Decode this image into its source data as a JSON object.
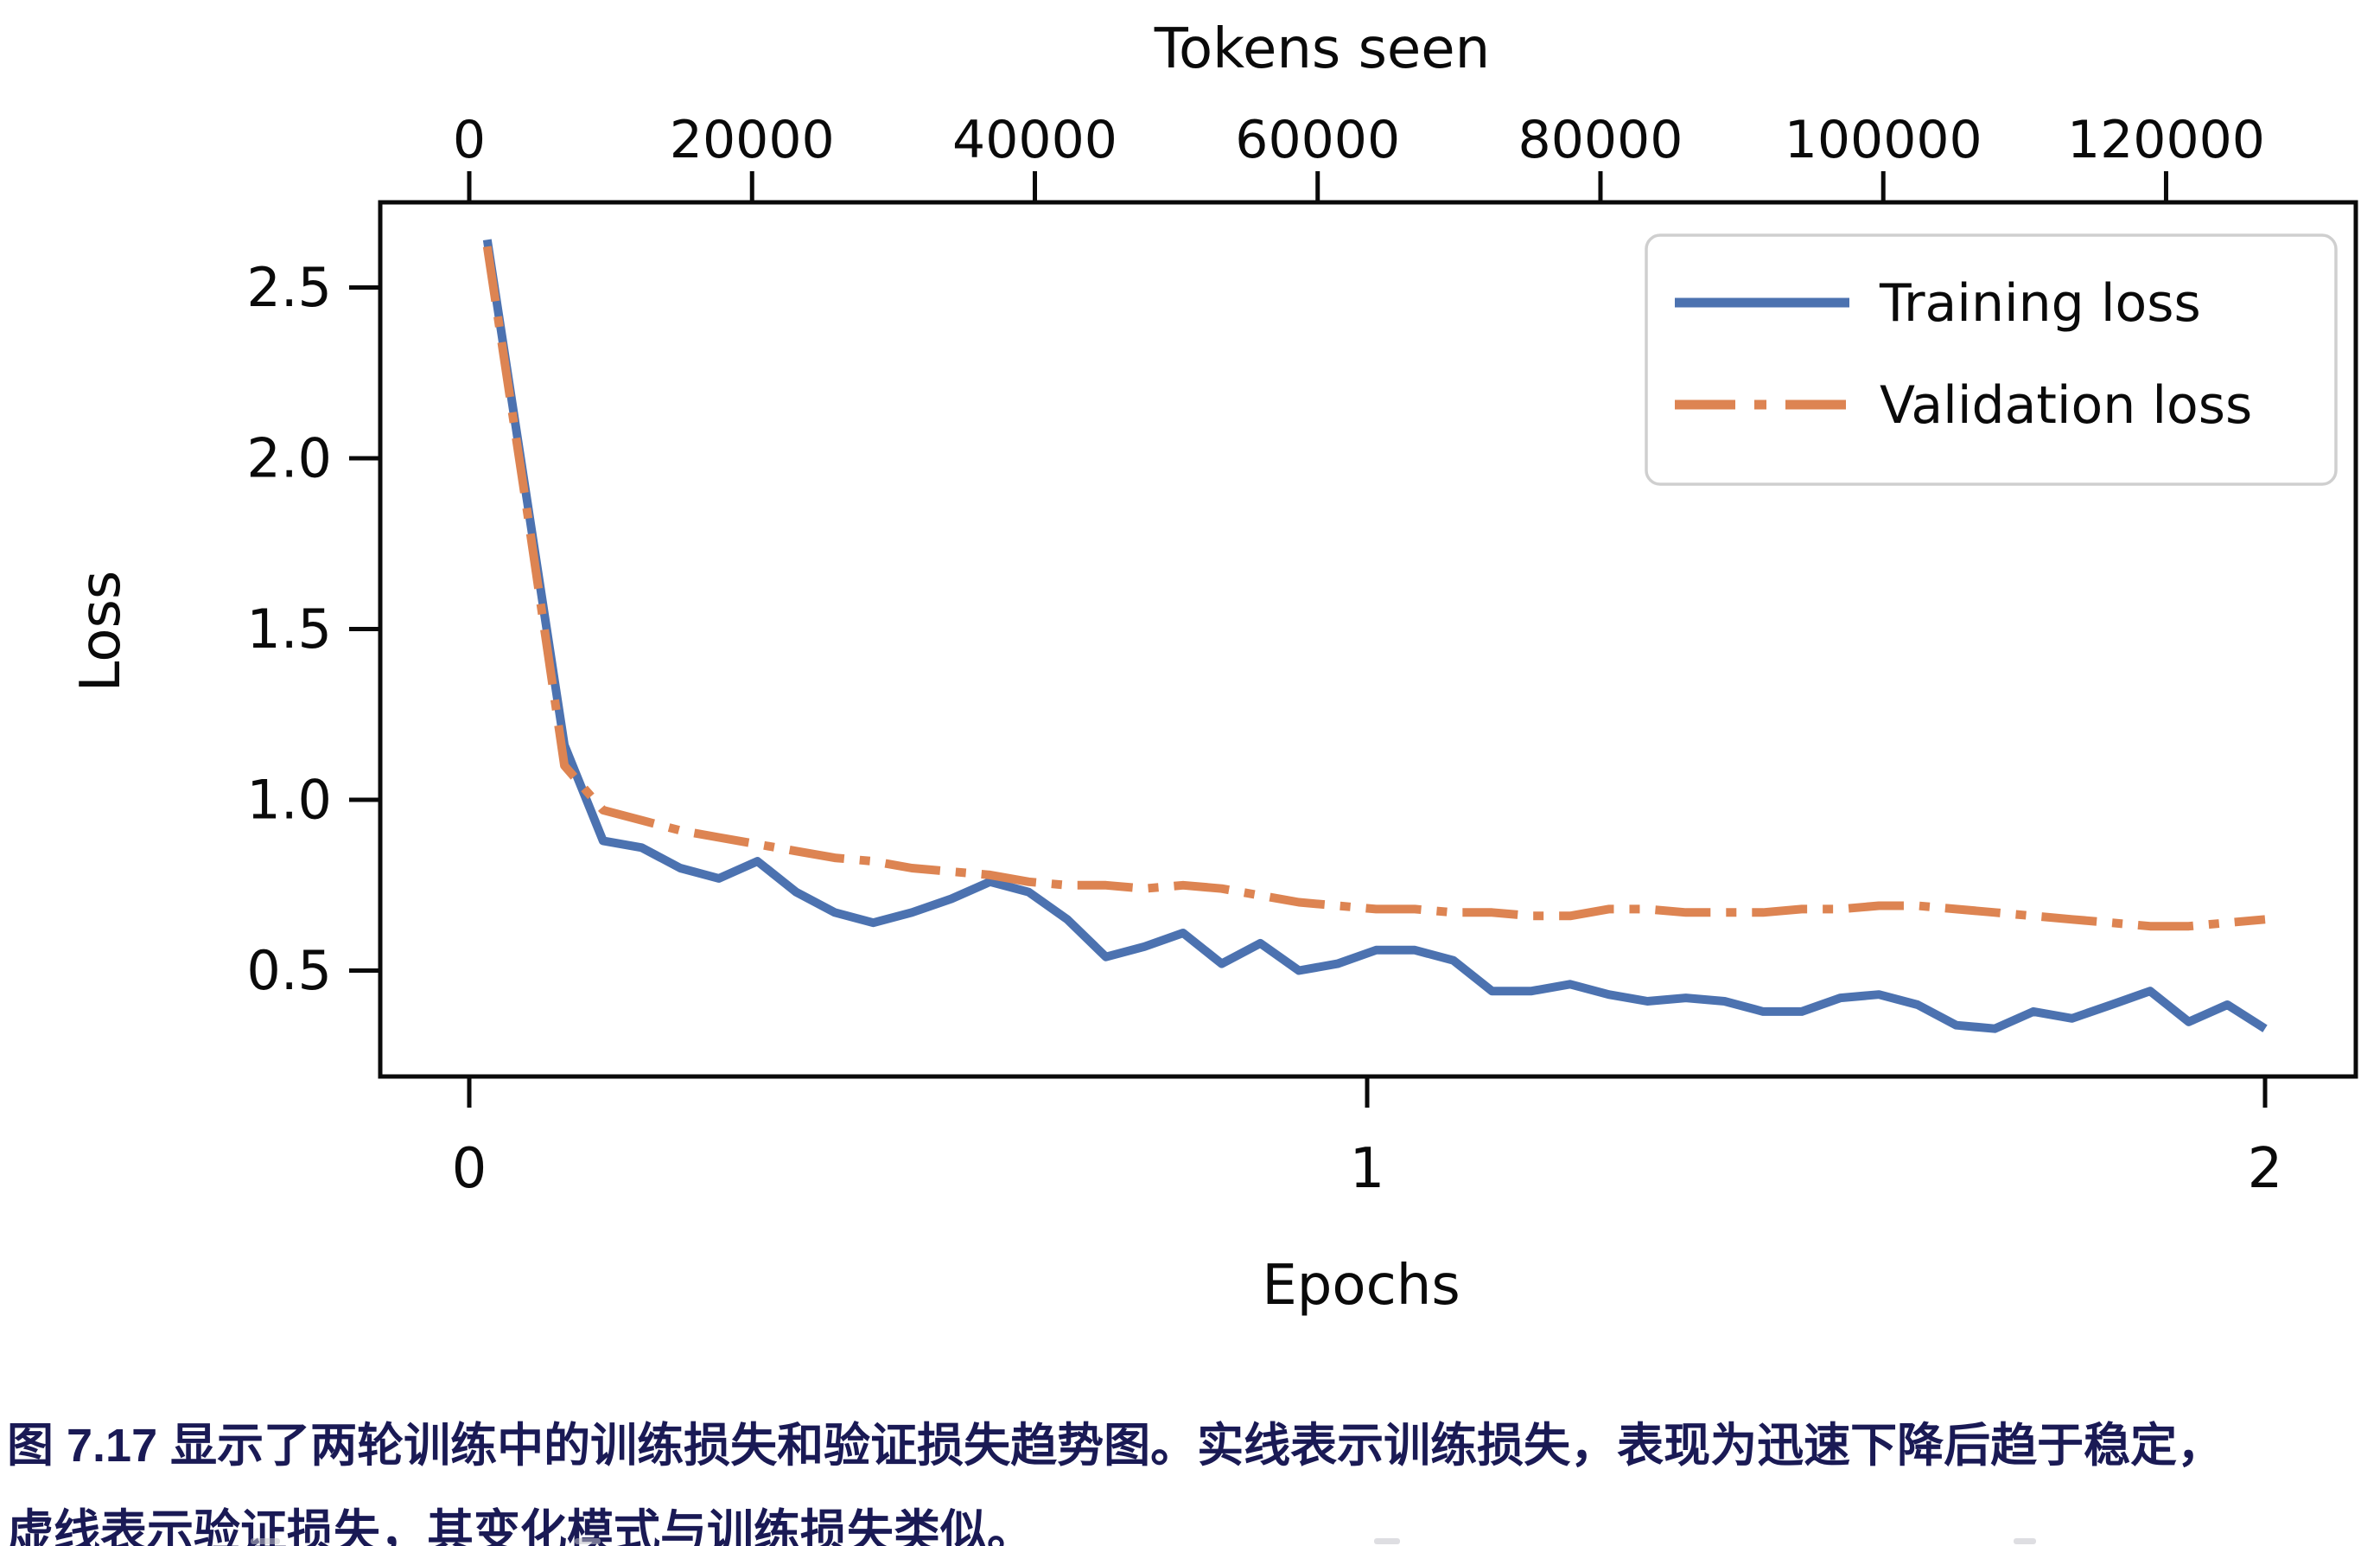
{
  "figure": {
    "top_axis_title": "Tokens seen",
    "bottom_axis_title": "Epochs",
    "left_axis_title": "Loss"
  },
  "legend": {
    "items": [
      {
        "label": "Training loss",
        "color": "#4c72b0",
        "style": "solid"
      },
      {
        "label": "Validation loss",
        "color": "#dd8452",
        "style": "dash-dot"
      }
    ]
  },
  "chart_data": {
    "type": "line",
    "title": "",
    "xlabel": "Epochs",
    "x2label": "Tokens seen",
    "ylabel": "Loss",
    "xlim": [
      -0.1,
      2.1
    ],
    "ylim": [
      0.215,
      2.755
    ],
    "grid": false,
    "legend_position": "upper right",
    "x_ticks_epochs": [
      0,
      1,
      2
    ],
    "top_ticks_tokens": [
      0,
      20000,
      40000,
      60000,
      80000,
      100000,
      120000
    ],
    "y_ticks": [
      2.5,
      2.0,
      1.5,
      1.0,
      0.5
    ],
    "tokens_per_epoch": 63500,
    "x": [
      0.02,
      0.063,
      0.106,
      0.149,
      0.192,
      0.235,
      0.278,
      0.321,
      0.364,
      0.407,
      0.45,
      0.493,
      0.537,
      0.58,
      0.623,
      0.666,
      0.709,
      0.752,
      0.795,
      0.838,
      0.881,
      0.924,
      0.967,
      1.01,
      1.053,
      1.096,
      1.139,
      1.183,
      1.226,
      1.269,
      1.312,
      1.355,
      1.398,
      1.441,
      1.484,
      1.527,
      1.57,
      1.613,
      1.656,
      1.699,
      1.742,
      1.785,
      1.829,
      1.872,
      1.915,
      1.958,
      2.0
    ],
    "series": [
      {
        "name": "Training loss",
        "color": "#4c72b0",
        "line_style": "solid",
        "values": [
          2.64,
          1.9,
          1.16,
          0.88,
          0.86,
          0.8,
          0.77,
          0.82,
          0.73,
          0.67,
          0.64,
          0.67,
          0.71,
          0.76,
          0.73,
          0.65,
          0.54,
          0.57,
          0.61,
          0.52,
          0.58,
          0.5,
          0.52,
          0.56,
          0.56,
          0.53,
          0.44,
          0.44,
          0.46,
          0.43,
          0.41,
          0.42,
          0.41,
          0.38,
          0.38,
          0.42,
          0.43,
          0.4,
          0.34,
          0.33,
          0.38,
          0.36,
          0.4,
          0.44,
          0.35,
          0.4,
          0.33
        ]
      },
      {
        "name": "Validation loss",
        "color": "#dd8452",
        "line_style": "dash-dot",
        "values": [
          2.62,
          1.87,
          1.1,
          0.97,
          0.94,
          0.91,
          0.89,
          0.87,
          0.85,
          0.83,
          0.82,
          0.8,
          0.79,
          0.78,
          0.76,
          0.75,
          0.75,
          0.74,
          0.75,
          0.74,
          0.72,
          0.7,
          0.69,
          0.68,
          0.68,
          0.67,
          0.67,
          0.66,
          0.66,
          0.68,
          0.68,
          0.67,
          0.67,
          0.67,
          0.68,
          0.68,
          0.69,
          0.69,
          0.68,
          0.67,
          0.66,
          0.65,
          0.64,
          0.63,
          0.63,
          0.64,
          0.65
        ]
      }
    ]
  },
  "caption": {
    "line1": "图 7.17 显示了两轮训练中的训练损失和验证损失趋势图。实线表示训练损失，表现为迅速下降后趋于稳定，",
    "line2": "虚线表示验证损失，其变化模式与训练损失类似。"
  },
  "colors": {
    "train_line": "#4c72b0",
    "validation_line": "#dd8452",
    "axis": "#0a0a0a",
    "tick_label": "#0a0a0a",
    "legend_border": "#cfcfcf",
    "caption_text": "#1a1a55",
    "background": "#ffffff"
  }
}
